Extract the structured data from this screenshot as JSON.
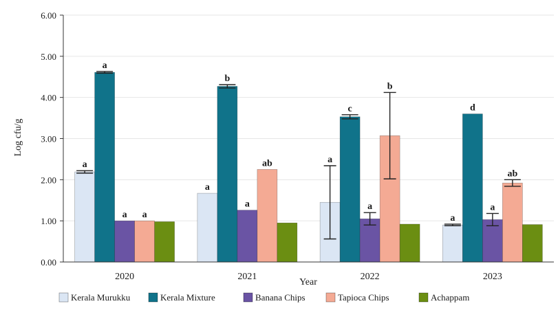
{
  "chart_data": {
    "type": "bar",
    "title": "",
    "xlabel": "Year",
    "ylabel": "Log cfu/g",
    "ylim": [
      0,
      6
    ],
    "yticks": [
      "0.00",
      "1.00",
      "2.00",
      "3.00",
      "4.00",
      "5.00",
      "6.00"
    ],
    "categories": [
      "2020",
      "2021",
      "2022",
      "2023"
    ],
    "grid": true,
    "legend_position": "bottom",
    "series": [
      {
        "name": "Kerala Murukku",
        "color": "#dbe6f4",
        "values": [
          2.19,
          1.67,
          1.45,
          0.9
        ],
        "errors": [
          0.03,
          0,
          0.89,
          0.02
        ],
        "labels": [
          "a",
          "a",
          "a",
          "a"
        ]
      },
      {
        "name": "Kerala Mixture",
        "color": "#10738a",
        "values": [
          4.61,
          4.27,
          3.53,
          3.6
        ],
        "errors": [
          0.02,
          0.04,
          0.05,
          0
        ],
        "labels": [
          "a",
          "b",
          "c",
          "d"
        ]
      },
      {
        "name": "Banana Chips",
        "color": "#6a54a4",
        "values": [
          1.0,
          1.26,
          1.05,
          1.03
        ],
        "errors": [
          0,
          0,
          0.15,
          0.15
        ],
        "labels": [
          "a",
          "a",
          "a",
          "a"
        ]
      },
      {
        "name": "Tapioca Chips",
        "color": "#f4aa94",
        "values": [
          1.0,
          2.25,
          3.07,
          1.92
        ],
        "errors": [
          0,
          0,
          1.05,
          0.08
        ],
        "labels": [
          "a",
          "ab",
          "b",
          "ab"
        ]
      },
      {
        "name": "Achappam",
        "color": "#6b8e12",
        "values": [
          0.98,
          0.95,
          0.92,
          0.91
        ],
        "errors": [
          0,
          0,
          0,
          0
        ],
        "labels": [
          "",
          "",
          "",
          ""
        ]
      }
    ]
  }
}
